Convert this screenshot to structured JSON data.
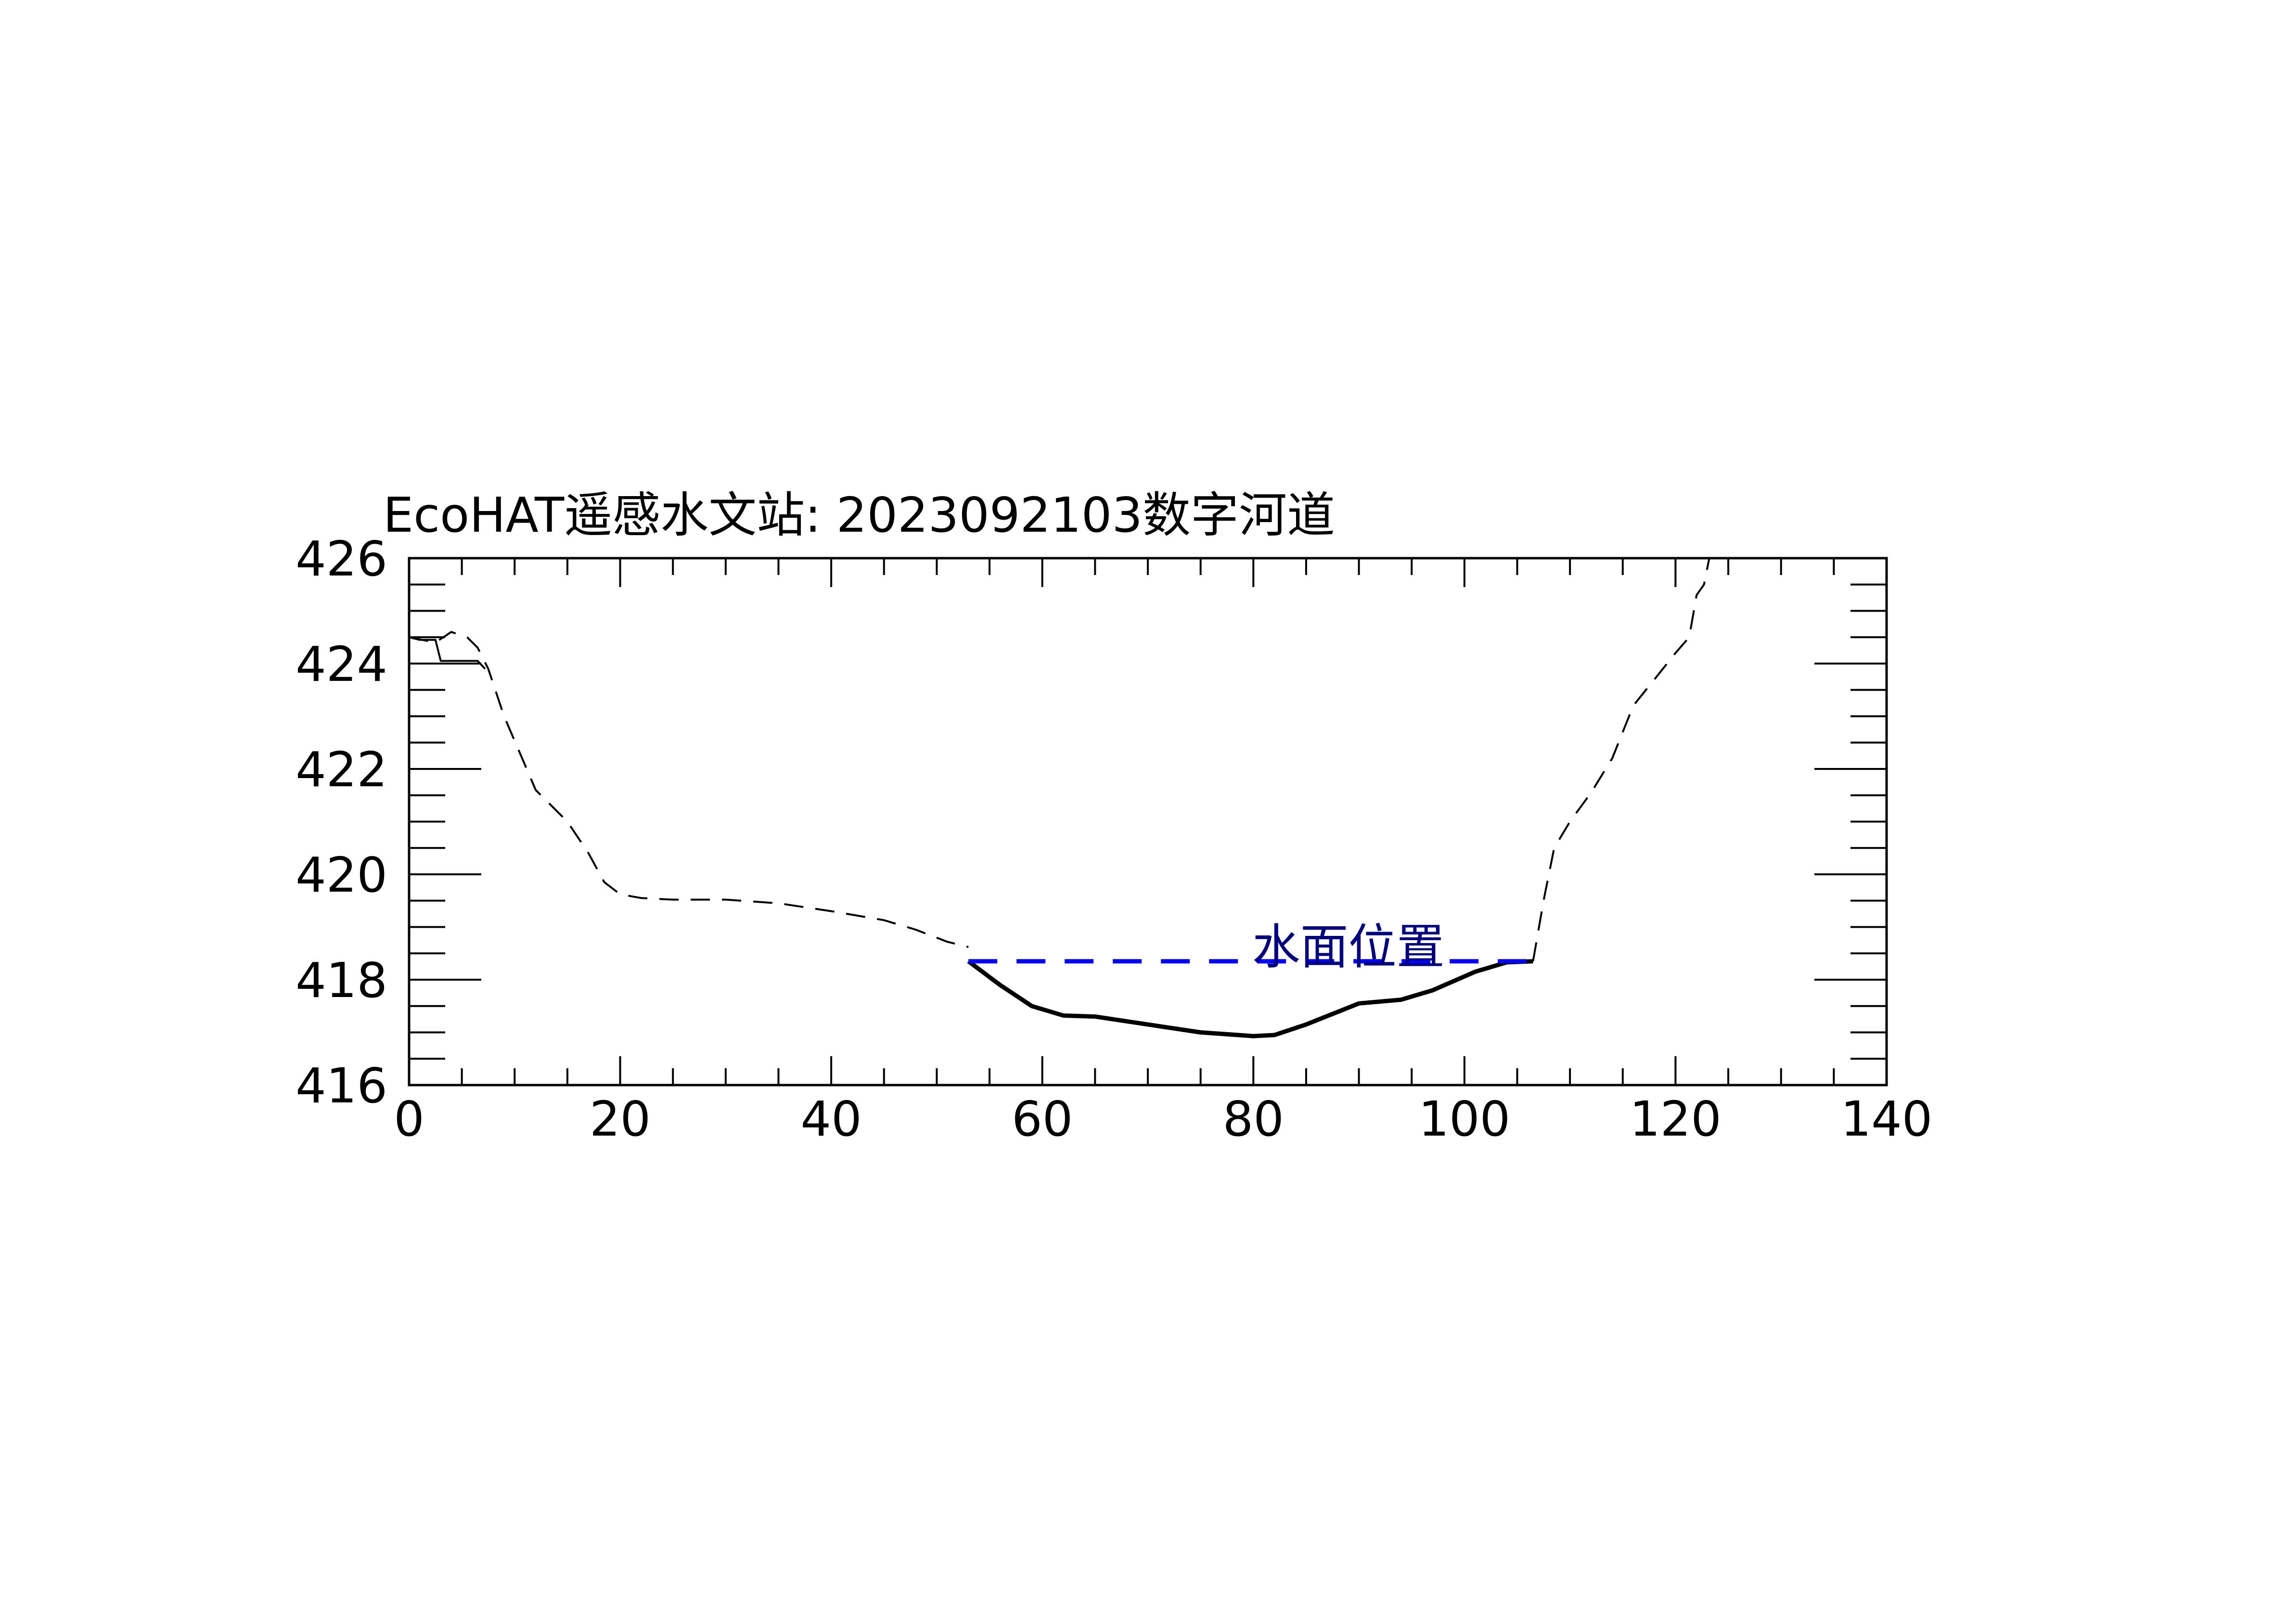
{
  "chart_data": {
    "type": "line",
    "title": "EcoHAT遥感水文站: 2023092103数字河道",
    "xlabel": "",
    "ylabel": "",
    "xlim": [
      0,
      140
    ],
    "ylim": [
      416,
      426
    ],
    "x_ticks": [
      0,
      20,
      40,
      60,
      80,
      100,
      120,
      140
    ],
    "y_ticks": [
      416,
      418,
      420,
      422,
      424,
      426
    ],
    "x_minor_step": 5,
    "y_minor_step": 0.5,
    "grid": false,
    "series": [
      {
        "style": "dashed",
        "color": "#000000",
        "points": [
          [
            0,
            424.5
          ],
          [
            2.5,
            424.4
          ],
          [
            4,
            424.6
          ],
          [
            5.5,
            424.5
          ],
          [
            6.5,
            424.3
          ],
          [
            7.5,
            423.9
          ],
          [
            9,
            423.0
          ],
          [
            10.5,
            422.3
          ],
          [
            12,
            421.6
          ],
          [
            13.5,
            421.3
          ],
          [
            15,
            421.0
          ],
          [
            17,
            420.4
          ],
          [
            18.5,
            419.85
          ],
          [
            20,
            419.62
          ],
          [
            22,
            419.55
          ],
          [
            25,
            419.52
          ],
          [
            30,
            419.52
          ],
          [
            35,
            419.45
          ],
          [
            40,
            419.3
          ],
          [
            45,
            419.13
          ],
          [
            48,
            418.95
          ],
          [
            51,
            418.72
          ],
          [
            53,
            418.62
          ]
        ]
      },
      {
        "style": "solid",
        "color": "#000000",
        "points": [
          [
            0,
            424.5
          ],
          [
            1,
            424.45
          ],
          [
            2.5,
            424.45
          ],
          [
            3,
            424.05
          ],
          [
            6.5,
            424.05
          ],
          [
            7.2,
            423.9
          ]
        ]
      },
      {
        "style": "solid",
        "color": "#000000",
        "points": [
          [
            53,
            418.35
          ],
          [
            56,
            417.9
          ],
          [
            59,
            417.5
          ],
          [
            62,
            417.32
          ],
          [
            65,
            417.3
          ],
          [
            70,
            417.15
          ],
          [
            75,
            417.0
          ],
          [
            80,
            416.93
          ],
          [
            82,
            416.95
          ],
          [
            85,
            417.15
          ],
          [
            90,
            417.55
          ],
          [
            94,
            417.62
          ],
          [
            97,
            417.8
          ],
          [
            101,
            418.15
          ],
          [
            104,
            418.33
          ],
          [
            106.5,
            418.35
          ]
        ]
      },
      {
        "style": "dashed",
        "color": "#000000",
        "points": [
          [
            106.5,
            418.35
          ],
          [
            107.5,
            419.5
          ],
          [
            108.5,
            420.5
          ],
          [
            110,
            421.0
          ],
          [
            112,
            421.55
          ],
          [
            114,
            422.2
          ],
          [
            116,
            423.2
          ],
          [
            118,
            423.7
          ],
          [
            120,
            424.2
          ],
          [
            121.3,
            424.5
          ],
          [
            122,
            425.3
          ],
          [
            122.7,
            425.5
          ],
          [
            123.2,
            426.0
          ]
        ]
      },
      {
        "name": "水面位置",
        "style": "dashed",
        "color": "#0000ff",
        "points": [
          [
            53,
            418.35
          ],
          [
            106.5,
            418.35
          ]
        ]
      }
    ],
    "annotations": [
      {
        "text": "水面位置",
        "x": 89,
        "y": 418.35,
        "color": "#000080"
      }
    ]
  }
}
